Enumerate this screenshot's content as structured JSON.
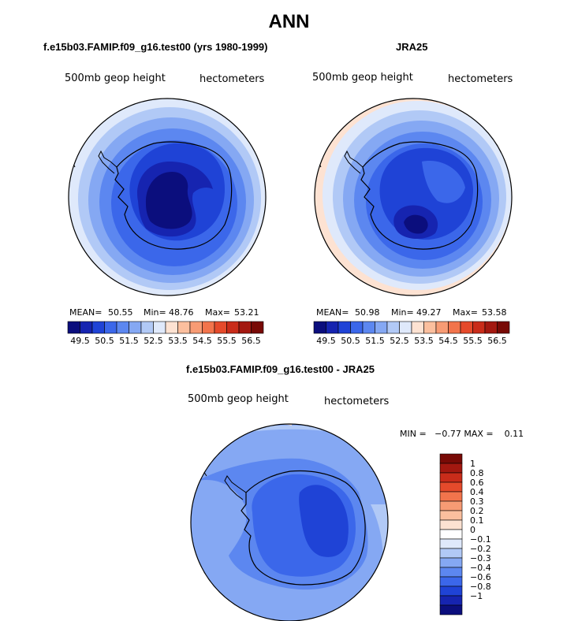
{
  "page": {
    "title": "ANN"
  },
  "panels": [
    {
      "title": "f.e15b03.FAMIP.f09_g16.test00 (yrs 1980-1999)",
      "left_label": "500mb geop height",
      "right_label": "hectometers",
      "stats": {
        "mean_label": "MEAN=",
        "mean": "50.55",
        "min_label": "Min=",
        "min": "48.76",
        "max_label": "Max=",
        "max": "53.21"
      }
    },
    {
      "title": "JRA25",
      "left_label": "500mb geop height",
      "right_label": "hectometers",
      "stats": {
        "mean_label": "MEAN=",
        "mean": "50.98",
        "min_label": "Min=",
        "min": "49.27",
        "max_label": "Max=",
        "max": "53.58"
      }
    }
  ],
  "diff_panel": {
    "title": "f.e15b03.FAMIP.f09_g16.test00 - JRA25",
    "left_label": "500mb geop height",
    "right_label": "hectometers",
    "minmax": "MIN =   −0.77 MAX =    0.11"
  },
  "colorbar_h": {
    "colors": [
      "#0b0e7d",
      "#1624b0",
      "#1f43d6",
      "#3b67ea",
      "#5c87f0",
      "#85a8f3",
      "#b1c9f6",
      "#dfe9fb",
      "#fde2d2",
      "#fbbf9e",
      "#f79b74",
      "#f2744c",
      "#e54a2b",
      "#c92c1a",
      "#a31810",
      "#780a06"
    ],
    "ticks": [
      "49.5",
      "50.5",
      "51.5",
      "52.5",
      "53.5",
      "54.5",
      "55.5",
      "56.5"
    ]
  },
  "colorbar_v": {
    "colors": [
      "#780a06",
      "#a31810",
      "#c92c1a",
      "#e54a2b",
      "#f2744c",
      "#f79b74",
      "#fbbf9e",
      "#fde2d2",
      "#ffffff",
      "#dfe9fb",
      "#b1c9f6",
      "#85a8f3",
      "#5c87f0",
      "#3b67ea",
      "#1f43d6",
      "#1624b0",
      "#0b0e7d"
    ],
    "ticks": [
      "1",
      "0.8",
      "0.6",
      "0.4",
      "0.3",
      "0.2",
      "0.1",
      "0",
      "−0.1",
      "−0.2",
      "−0.3",
      "−0.4",
      "−0.6",
      "−0.8",
      "−1"
    ]
  },
  "chart_data": [
    {
      "type": "heatmap",
      "projection": "south-polar-stereographic",
      "title": "f.e15b03.FAMIP.f09_g16.test00 (yrs 1980-1999)",
      "variable": "500mb geop height",
      "units": "hectometers",
      "mean": 50.55,
      "min": 48.76,
      "max": 53.21,
      "levels": [
        49.5,
        50,
        50.5,
        51,
        51.5,
        52,
        52.5,
        53,
        53.5,
        54,
        54.5,
        55,
        55.5,
        56,
        56.5
      ]
    },
    {
      "type": "heatmap",
      "projection": "south-polar-stereographic",
      "title": "JRA25",
      "variable": "500mb geop height",
      "units": "hectometers",
      "mean": 50.98,
      "min": 49.27,
      "max": 53.58,
      "levels": [
        49.5,
        50,
        50.5,
        51,
        51.5,
        52,
        52.5,
        53,
        53.5,
        54,
        54.5,
        55,
        55.5,
        56,
        56.5
      ]
    },
    {
      "type": "heatmap",
      "projection": "south-polar-stereographic",
      "title": "f.e15b03.FAMIP.f09_g16.test00 - JRA25",
      "variable": "500mb geop height",
      "units": "hectometers",
      "min": -0.77,
      "max": 0.11,
      "levels": [
        -1,
        -0.8,
        -0.6,
        -0.4,
        -0.3,
        -0.2,
        -0.1,
        0,
        0.1,
        0.2,
        0.3,
        0.4,
        0.6,
        0.8,
        1
      ]
    }
  ]
}
